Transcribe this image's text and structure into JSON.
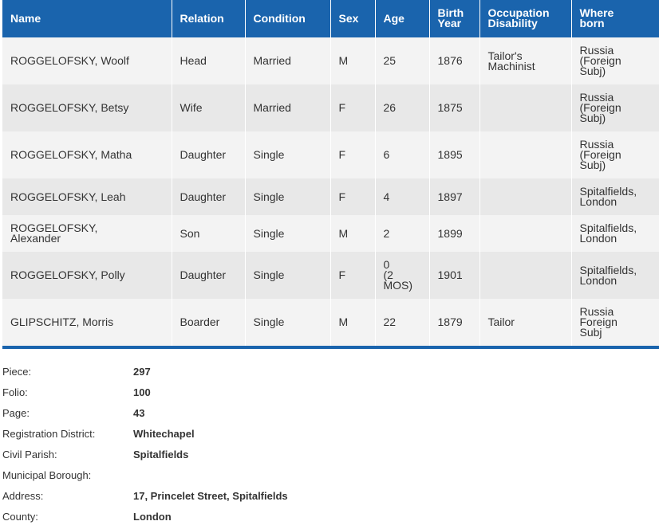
{
  "columns": [
    "Name",
    "Relation",
    "Condition",
    "Sex",
    "Age",
    "Birth\nYear",
    "Occupation\nDisability",
    "Where\nborn"
  ],
  "rows": [
    {
      "name": "ROGGELOFSKY, Woolf",
      "relation": "Head",
      "condition": "Married",
      "sex": "M",
      "age": "25",
      "birth_year": "1876",
      "occupation": "Tailor's\nMachinist",
      "where_born": "Russia\n(Foreign\nSubj)"
    },
    {
      "name": "ROGGELOFSKY, Betsy",
      "relation": "Wife",
      "condition": "Married",
      "sex": "F",
      "age": "26",
      "birth_year": "1875",
      "occupation": "",
      "where_born": "Russia\n(Foreign\nSubj)"
    },
    {
      "name": "ROGGELOFSKY, Matha",
      "relation": "Daughter",
      "condition": "Single",
      "sex": "F",
      "age": "6",
      "birth_year": "1895",
      "occupation": "",
      "where_born": "Russia\n(Foreign\nSubj)"
    },
    {
      "name": "ROGGELOFSKY, Leah",
      "relation": "Daughter",
      "condition": "Single",
      "sex": "F",
      "age": "4",
      "birth_year": "1897",
      "occupation": "",
      "where_born": "Spitalfields,\nLondon"
    },
    {
      "name": "ROGGELOFSKY,\nAlexander",
      "relation": "Son",
      "condition": "Single",
      "sex": "M",
      "age": "2",
      "birth_year": "1899",
      "occupation": "",
      "where_born": "Spitalfields,\nLondon"
    },
    {
      "name": "ROGGELOFSKY, Polly",
      "relation": "Daughter",
      "condition": "Single",
      "sex": "F",
      "age": "0\n(2\nMOS)",
      "birth_year": "1901",
      "occupation": "",
      "where_born": "Spitalfields,\nLondon"
    },
    {
      "name": "GLIPSCHITZ, Morris",
      "relation": "Boarder",
      "condition": "Single",
      "sex": "M",
      "age": "22",
      "birth_year": "1879",
      "occupation": "Tailor",
      "where_born": "Russia\nForeign\nSubj"
    }
  ],
  "details": [
    {
      "label": "Piece:",
      "value": "297"
    },
    {
      "label": "Folio:",
      "value": "100"
    },
    {
      "label": "Page:",
      "value": "43"
    },
    {
      "label": "Registration District:",
      "value": "Whitechapel"
    },
    {
      "label": "Civil Parish:",
      "value": "Spitalfields"
    },
    {
      "label": "Municipal Borough:",
      "value": ""
    },
    {
      "label": "Address:",
      "value": "17, Princelet Street, Spitalfields"
    },
    {
      "label": "County:",
      "value": "London"
    }
  ],
  "colors": {
    "header_bg": "#1a64ad",
    "row_light": "#f3f3f3",
    "row_dark": "#e8e8e8"
  }
}
